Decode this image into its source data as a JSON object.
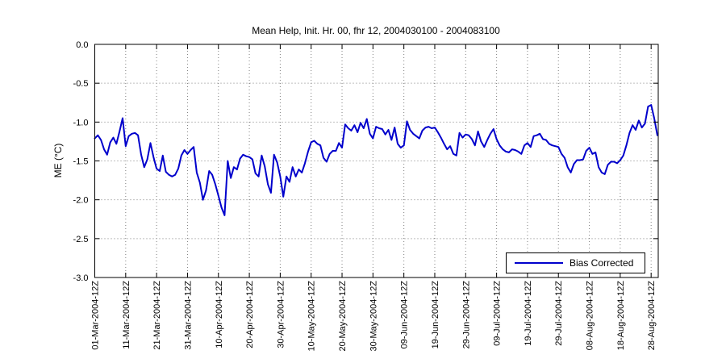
{
  "figure": {
    "background": "#FFFFFF"
  },
  "chart_data": {
    "type": "line",
    "title": "Mean Help, Init. Hr. 00, fhr 12, 2004030100 - 2004083100",
    "xlabel": "",
    "ylabel": "ME (°C)",
    "ylim": [
      -3.0,
      0.0
    ],
    "ytick_values": [
      0.0,
      -0.5,
      -1.0,
      -1.5,
      -2.0,
      -2.5,
      -3.0
    ],
    "ytick_labels": [
      "0.0",
      "-0.5",
      "-1.0",
      "-1.5",
      "-2.0",
      "-2.5",
      "-3.0"
    ],
    "xlim_days": [
      0,
      182.3
    ],
    "xtick_days": [
      0,
      10,
      20,
      30,
      40,
      50,
      60,
      70,
      80,
      90,
      100,
      110,
      120,
      130,
      140,
      150,
      160,
      170,
      180
    ],
    "xtick_labels": [
      "01-Mar-2004-12Z",
      "11-Mar-2004-12Z",
      "21-Mar-2004-12Z",
      "31-Mar-2004-12Z",
      "10-Apr-2004-12Z",
      "20-Apr-2004-12Z",
      "30-Apr-2004-12Z",
      "10-May-2004-12Z",
      "20-May-2004-12Z",
      "30-May-2004-12Z",
      "09-Jun-2004-12Z",
      "19-Jun-2004-12Z",
      "29-Jun-2004-12Z",
      "09-Jul-2004-12Z",
      "19-Jul-2004-12Z",
      "29-Jul-2004-12Z",
      "08-Aug-2004-12Z",
      "18-Aug-2004-12Z",
      "28-Aug-2004-12Z"
    ],
    "grid": true,
    "grid_style": "dotted",
    "grid_color": "#808080",
    "axis_color": "#000000",
    "legend": {
      "position": "lower-right",
      "entries": [
        {
          "label": "Bias Corrected",
          "color": "#0000CC"
        }
      ]
    },
    "series": [
      {
        "name": "Bias Corrected",
        "color": "#0000CC",
        "x_start_day": 0,
        "x_step_days": 1,
        "values": [
          -1.21,
          -1.17,
          -1.23,
          -1.35,
          -1.42,
          -1.26,
          -1.2,
          -1.28,
          -1.12,
          -0.95,
          -1.31,
          -1.18,
          -1.15,
          -1.14,
          -1.17,
          -1.42,
          -1.58,
          -1.48,
          -1.27,
          -1.45,
          -1.6,
          -1.63,
          -1.43,
          -1.64,
          -1.68,
          -1.7,
          -1.68,
          -1.6,
          -1.43,
          -1.36,
          -1.41,
          -1.36,
          -1.32,
          -1.65,
          -1.78,
          -2.0,
          -1.88,
          -1.63,
          -1.68,
          -1.8,
          -1.95,
          -2.1,
          -2.2,
          -1.5,
          -1.72,
          -1.58,
          -1.61,
          -1.47,
          -1.42,
          -1.44,
          -1.45,
          -1.48,
          -1.66,
          -1.7,
          -1.43,
          -1.57,
          -1.8,
          -1.91,
          -1.42,
          -1.52,
          -1.7,
          -1.96,
          -1.7,
          -1.77,
          -1.58,
          -1.7,
          -1.61,
          -1.65,
          -1.53,
          -1.38,
          -1.26,
          -1.24,
          -1.28,
          -1.3,
          -1.46,
          -1.51,
          -1.41,
          -1.37,
          -1.37,
          -1.27,
          -1.33,
          -1.03,
          -1.08,
          -1.11,
          -1.04,
          -1.13,
          -1.01,
          -1.08,
          -0.96,
          -1.15,
          -1.21,
          -1.06,
          -1.08,
          -1.09,
          -1.16,
          -1.1,
          -1.23,
          -1.07,
          -1.28,
          -1.33,
          -1.3,
          -0.99,
          -1.1,
          -1.15,
          -1.18,
          -1.21,
          -1.11,
          -1.07,
          -1.06,
          -1.08,
          -1.07,
          -1.13,
          -1.2,
          -1.28,
          -1.35,
          -1.31,
          -1.41,
          -1.43,
          -1.14,
          -1.2,
          -1.16,
          -1.17,
          -1.22,
          -1.3,
          -1.12,
          -1.25,
          -1.32,
          -1.23,
          -1.15,
          -1.09,
          -1.22,
          -1.3,
          -1.35,
          -1.38,
          -1.39,
          -1.35,
          -1.36,
          -1.38,
          -1.41,
          -1.3,
          -1.27,
          -1.32,
          -1.18,
          -1.17,
          -1.15,
          -1.22,
          -1.23,
          -1.28,
          -1.3,
          -1.31,
          -1.32,
          -1.41,
          -1.46,
          -1.58,
          -1.65,
          -1.54,
          -1.49,
          -1.49,
          -1.48,
          -1.37,
          -1.33,
          -1.41,
          -1.39,
          -1.58,
          -1.65,
          -1.67,
          -1.55,
          -1.51,
          -1.51,
          -1.53,
          -1.49,
          -1.43,
          -1.3,
          -1.14,
          -1.04,
          -1.1,
          -0.98,
          -1.07,
          -1.02,
          -0.8,
          -0.78,
          -0.95,
          -1.17
        ]
      }
    ]
  }
}
